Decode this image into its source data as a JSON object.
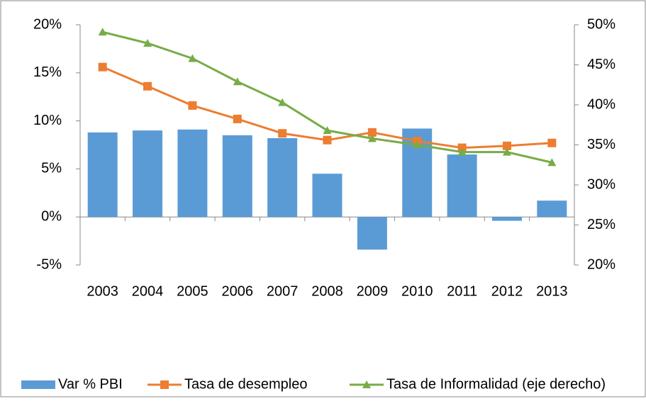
{
  "chart_data": {
    "type": "bar",
    "categories": [
      "2003",
      "2004",
      "2005",
      "2006",
      "2007",
      "2008",
      "2009",
      "2010",
      "2011",
      "2012",
      "2013"
    ],
    "series": [
      {
        "name": "Var % PBI",
        "type": "bar",
        "color": "#5b9bd5",
        "values": [
          8.8,
          9.0,
          9.1,
          8.5,
          8.2,
          4.5,
          -3.4,
          9.2,
          6.5,
          -0.4,
          1.7
        ]
      },
      {
        "name": "Tasa de desempleo",
        "type": "line",
        "color": "#ed7d31",
        "marker": "square",
        "values": [
          15.6,
          13.6,
          11.6,
          10.2,
          8.7,
          8.0,
          8.8,
          7.9,
          7.2,
          7.4,
          7.7
        ]
      },
      {
        "name": "Tasa de Informalidad (eje derecho)",
        "type": "line",
        "color": "#77ac47",
        "marker": "triangle",
        "axis": "y2",
        "values": [
          49.1,
          47.7,
          45.8,
          42.9,
          40.3,
          36.8,
          35.8,
          35.0,
          34.1,
          34.1,
          32.8
        ]
      }
    ],
    "ylim": [
      -5,
      20
    ],
    "yticks": [
      {
        "value": -5,
        "label": "-5%"
      },
      {
        "value": 0,
        "label": "0%"
      },
      {
        "value": 5,
        "label": "5%"
      },
      {
        "value": 10,
        "label": "10%"
      },
      {
        "value": 15,
        "label": "15%"
      },
      {
        "value": 20,
        "label": "20%"
      }
    ],
    "y2lim": [
      20,
      50
    ],
    "y2ticks": [
      {
        "value": 20,
        "label": "20%"
      },
      {
        "value": 25,
        "label": "25%"
      },
      {
        "value": 30,
        "label": "30%"
      },
      {
        "value": 35,
        "label": "35%"
      },
      {
        "value": 40,
        "label": "40%"
      },
      {
        "value": 45,
        "label": "45%"
      },
      {
        "value": 50,
        "label": "50%"
      }
    ],
    "grid": false,
    "legend": "bottom"
  }
}
